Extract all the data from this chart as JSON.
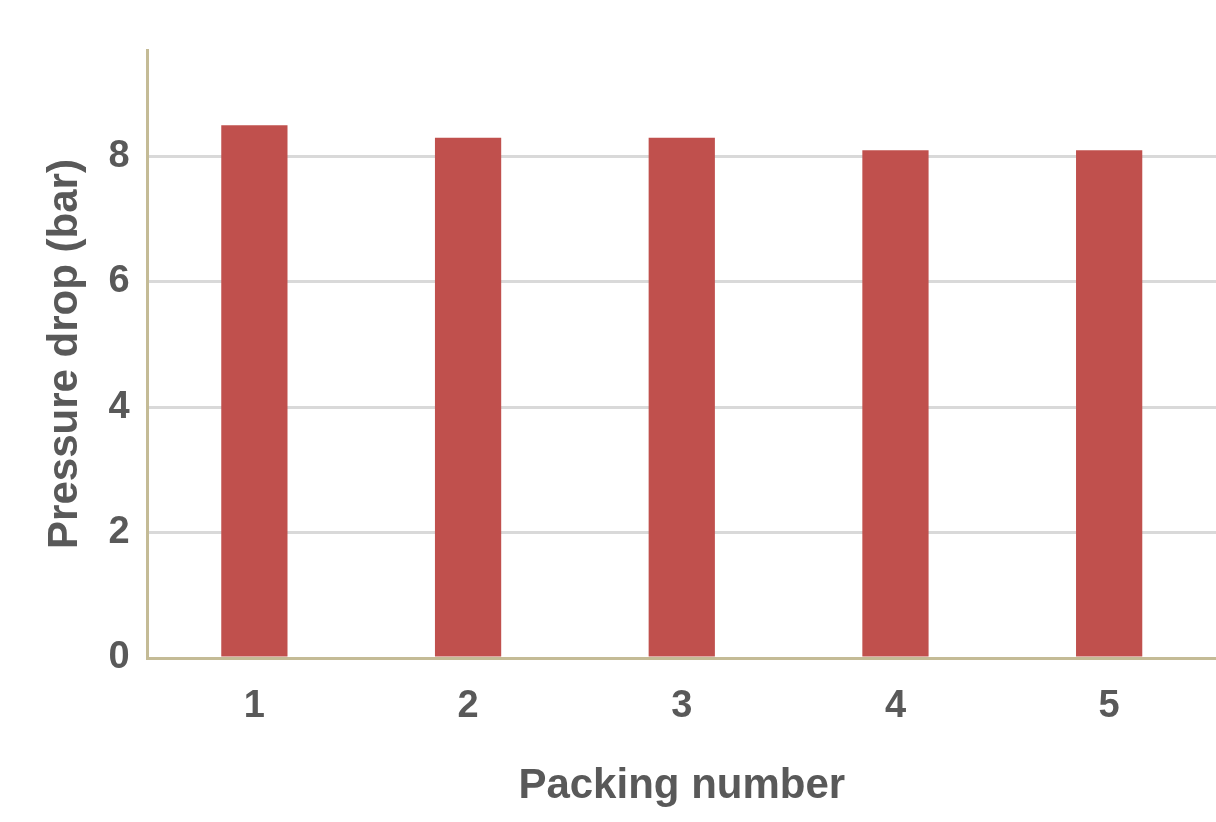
{
  "chart_data": {
    "type": "bar",
    "xlabel": "Packing number",
    "ylabel": "Pressure drop (bar)",
    "categories": [
      "1",
      "2",
      "3",
      "4",
      "5"
    ],
    "values": [
      8.5,
      8.3,
      8.3,
      8.1,
      8.1
    ],
    "color": "#c0504d",
    "ylim": [
      0,
      9.7
    ],
    "yticks": [
      0,
      2,
      4,
      6,
      8
    ],
    "grid": "y",
    "legend": false
  }
}
